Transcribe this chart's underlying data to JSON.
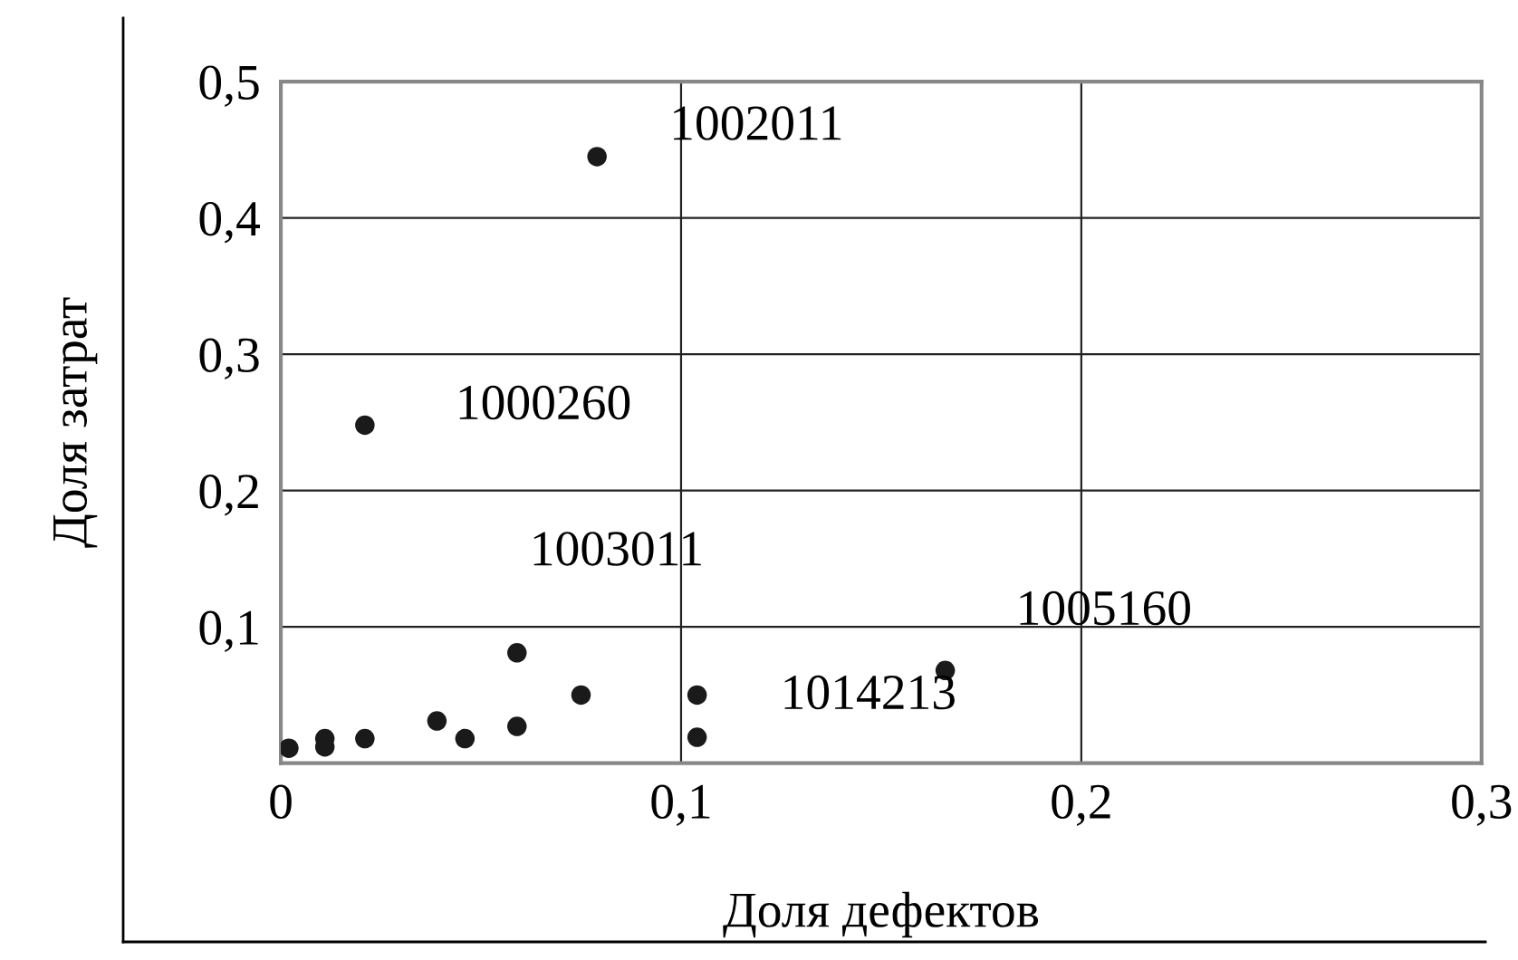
{
  "chart_data": {
    "type": "scatter",
    "xlabel": "Доля дефектов",
    "ylabel": "Доля затрат",
    "x": [
      0.079,
      0.021,
      0.002,
      0.011,
      0.011,
      0.021,
      0.039,
      0.046,
      0.059,
      0.059,
      0.075,
      0.104,
      0.104,
      0.166
    ],
    "values": [
      0.445,
      0.248,
      0.011,
      0.018,
      0.012,
      0.018,
      0.031,
      0.018,
      0.081,
      0.027,
      0.05,
      0.05,
      0.019,
      0.068
    ],
    "color": "#1a1a1a",
    "marker": "circle",
    "xlim": [
      0,
      0.3
    ],
    "ylim": [
      0,
      0.5
    ],
    "xticks": [
      0,
      {
        "value": 0.1,
        "label": "0,1"
      },
      {
        "value": 0.2,
        "label": "0,2"
      },
      {
        "value": 0.3,
        "label": "0,3"
      }
    ],
    "yticks": [
      {
        "value": 0.1,
        "label": "0,1"
      },
      {
        "value": 0.2,
        "label": "0,2"
      },
      {
        "value": 0.3,
        "label": "0,3"
      },
      {
        "value": 0.4,
        "label": "0,4"
      },
      {
        "value": 0.5,
        "label": "0,5"
      }
    ],
    "grid": true,
    "annotations": [
      {
        "text": "1002011",
        "x": 0.079,
        "y": 0.445
      },
      {
        "text": "1000260",
        "x": 0.021,
        "y": 0.248
      },
      {
        "text": "1003011",
        "x": 0.059,
        "y": 0.081
      },
      {
        "text": "1005160",
        "x": 0.166,
        "y": 0.068
      },
      {
        "text": "1014213",
        "x": 0.104,
        "y": 0.05
      }
    ]
  }
}
